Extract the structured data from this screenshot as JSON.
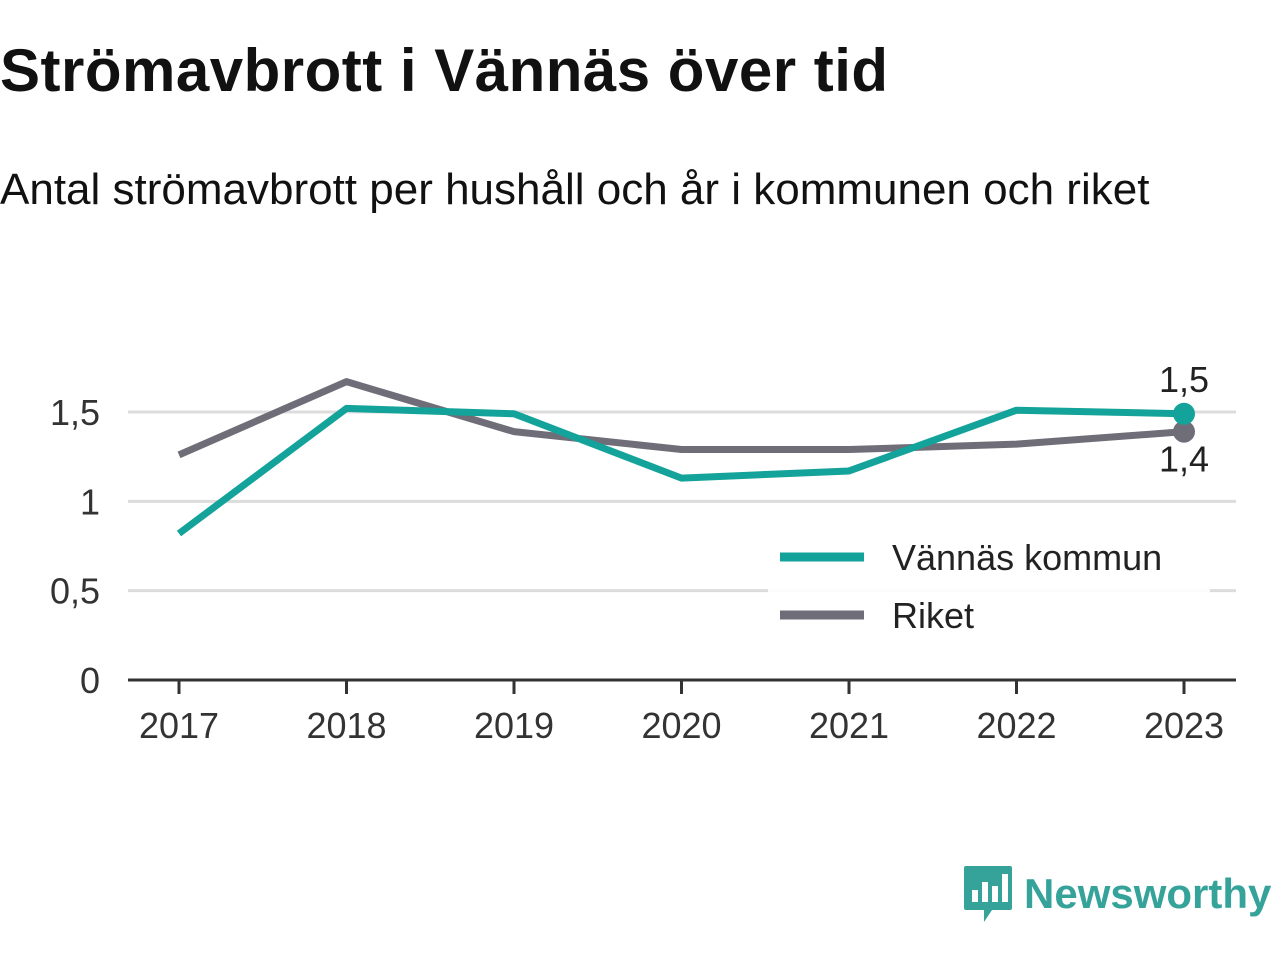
{
  "title": "Strömavbrott i Vännäs över tid",
  "subtitle": "Antal strömavbrott per hushåll och år i kommunen och riket",
  "brand": {
    "name": "Newsworthy",
    "color": "#35a39a",
    "icon": "bar-chart-speech-icon"
  },
  "colors": {
    "kommun": "#13a39a",
    "riket": "#6f6e78",
    "grid": "#dcdcdc",
    "axis": "#333333"
  },
  "chart_data": {
    "type": "line",
    "title": "Strömavbrott i Vännäs över tid",
    "subtitle": "Antal strömavbrott per hushåll och år i kommunen och riket",
    "xlabel": "",
    "ylabel": "",
    "categories": [
      "2017",
      "2018",
      "2019",
      "2020",
      "2021",
      "2022",
      "2023"
    ],
    "ylim": [
      0,
      1.8
    ],
    "yticks": [
      0,
      0.5,
      1,
      1.5
    ],
    "ytick_labels": [
      "0",
      "0,5",
      "1",
      "1,5"
    ],
    "grid": true,
    "legend_position": "bottom-right",
    "series": [
      {
        "name": "Vännäs kommun",
        "values": [
          0.82,
          1.52,
          1.49,
          1.13,
          1.17,
          1.51,
          1.49
        ],
        "color": "#13a39a",
        "end_label": "1,5"
      },
      {
        "name": "Riket",
        "values": [
          1.26,
          1.67,
          1.39,
          1.29,
          1.29,
          1.32,
          1.39
        ],
        "color": "#6f6e78",
        "end_label": "1,4"
      }
    ]
  }
}
